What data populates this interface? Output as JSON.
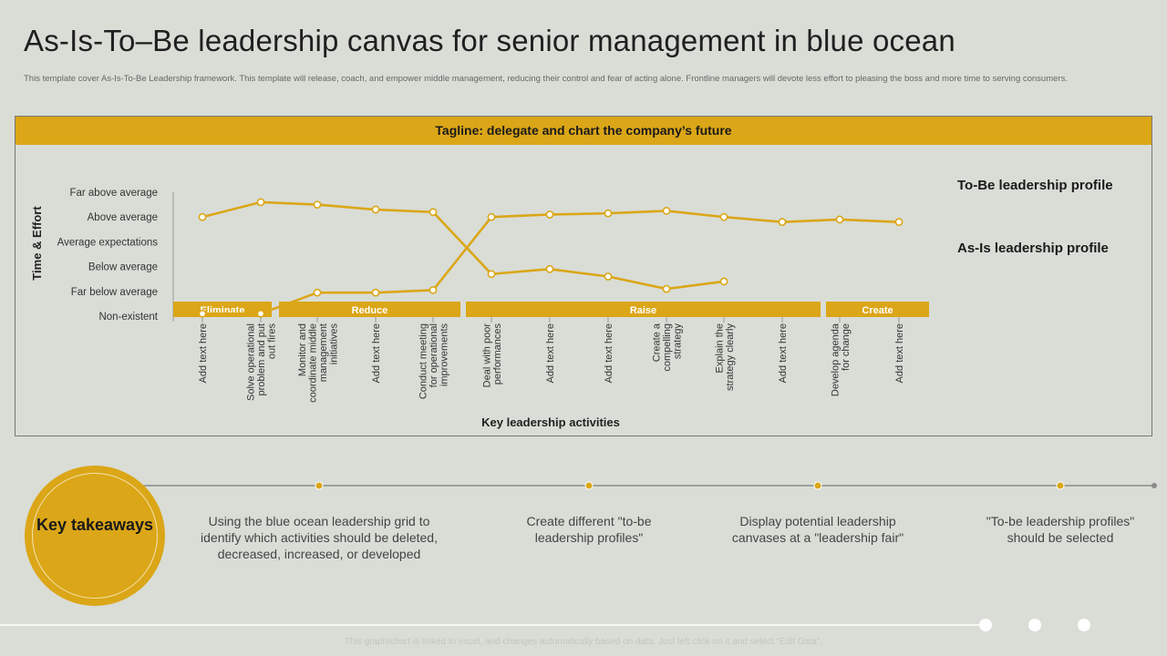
{
  "page": {
    "title": "As-Is-To–Be leadership canvas for senior management in blue ocean",
    "subtitle": "This template cover As-Is-To-Be Leadership framework. This template  will release, coach, and empower middle management,  reducing their control and fear of acting alone. Frontline managers will devote less effort to pleasing the boss and more time to serving consumers.",
    "tagline": "Tagline: delegate and chart the company’s future",
    "footer_note": "This graph/chart is linked to excel,  and changes automatically based on data. Just left click on it and select “Edit Data”."
  },
  "colors": {
    "accent": "#dba617",
    "background": "#d9ddd6",
    "text": "#222222"
  },
  "chart_data": {
    "type": "line",
    "title": "",
    "xlabel": "Key leadership activities",
    "ylabel": "Time & Effort",
    "y_levels": [
      "Non-existent",
      "Far below average",
      "Below average",
      "Average expectations",
      "Above average",
      "Far above average"
    ],
    "ylim": [
      0,
      5
    ],
    "categories": [
      "Add text here",
      "Solve operational problem and put out fires",
      "Monitor and coordinate middle management initiatives",
      "Add text here",
      "Conduct meeting for operational improvements",
      "Deal with poor performances",
      "Add text here",
      "Add text here",
      "Create a compelling strategy",
      "Explain the strategy clearly",
      "Add text here",
      "Develop agenda for change",
      "Add text here"
    ],
    "groups": [
      {
        "label": "Eliminate",
        "from": 0,
        "to": 1
      },
      {
        "label": "Reduce",
        "from": 2,
        "to": 4
      },
      {
        "label": "Raise",
        "from": 5,
        "to": 10
      },
      {
        "label": "Create",
        "from": 11,
        "to": 12
      }
    ],
    "series": [
      {
        "name": "As-Is leadership profile",
        "values": [
          4.0,
          4.6,
          4.5,
          4.3,
          4.2,
          1.7,
          1.9,
          1.6,
          1.1,
          1.4,
          null,
          null,
          null
        ]
      },
      {
        "name": "To-Be leadership profile",
        "values": [
          0.1,
          0.1,
          0.95,
          0.95,
          1.05,
          4.0,
          4.1,
          4.15,
          4.25,
          4.0,
          3.8,
          3.9,
          3.8
        ]
      }
    ],
    "legend": [
      "To-Be leadership profile",
      "As-Is leadership profile"
    ],
    "grid": false
  },
  "takeaways": {
    "label": "Key takeaways",
    "items": [
      "Using the blue ocean leadership grid to identify which activities should be deleted, decreased, increased, or developed",
      "Create different \"to-be leadership profiles\"",
      "Display potential leadership canvases at a \"leadership fair\"",
      "\"To-be leadership profiles\" should be selected"
    ]
  }
}
